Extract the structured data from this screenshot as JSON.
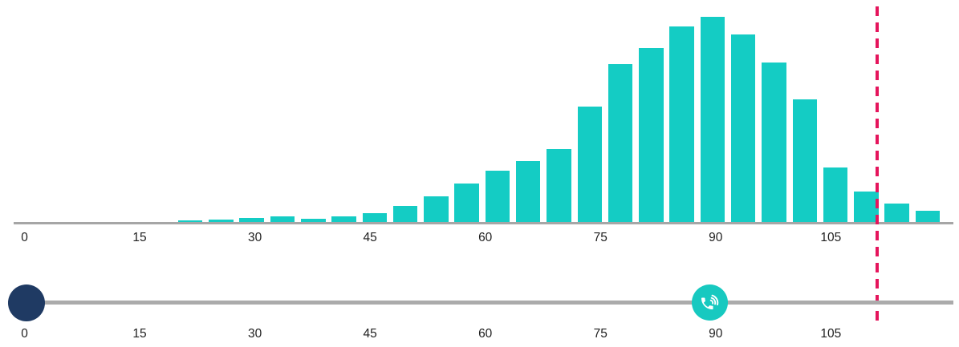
{
  "chart_data": {
    "type": "bar",
    "subtype": "histogram",
    "title": "",
    "xlabel": "",
    "ylabel": "",
    "x_tick_labels": [
      "0",
      "15",
      "30",
      "45",
      "60",
      "75",
      "90",
      "105"
    ],
    "x_tick_values": [
      0,
      15,
      30,
      45,
      60,
      75,
      90,
      105
    ],
    "xlim": [
      0,
      121
    ],
    "ylim": [
      0,
      260
    ],
    "grid": false,
    "legend": false,
    "bin_width": 4,
    "bin_start_values": [
      20,
      24,
      28,
      32,
      36,
      40,
      44,
      48,
      52,
      56,
      60,
      64,
      68,
      72,
      76,
      80,
      84,
      88,
      92,
      96,
      100,
      104,
      108,
      112,
      116
    ],
    "values": [
      3,
      4,
      6,
      8,
      5,
      8,
      12,
      21,
      33,
      49,
      65,
      77,
      92,
      145,
      198,
      218,
      245,
      257,
      235,
      200,
      154,
      69,
      39,
      24,
      15
    ],
    "bar_color": "#14CCC4",
    "axis_line_color": "#A6A6A6",
    "threshold_line": {
      "value": 111,
      "style": "dashed",
      "color": "#E5155C"
    }
  },
  "slider": {
    "track_color": "#ABABAB",
    "tick_labels": [
      "0",
      "15",
      "30",
      "45",
      "60",
      "75",
      "90",
      "105"
    ],
    "tick_values": [
      0,
      15,
      30,
      45,
      60,
      75,
      90,
      105
    ],
    "handles": [
      {
        "id": "range-start",
        "value": 0,
        "color": "#1F3A63",
        "icon": "",
        "diameter": 46
      },
      {
        "id": "current-value",
        "value": 89,
        "color": "#17C9C0",
        "icon": "phone-in-talk",
        "diameter": 45
      }
    ]
  }
}
